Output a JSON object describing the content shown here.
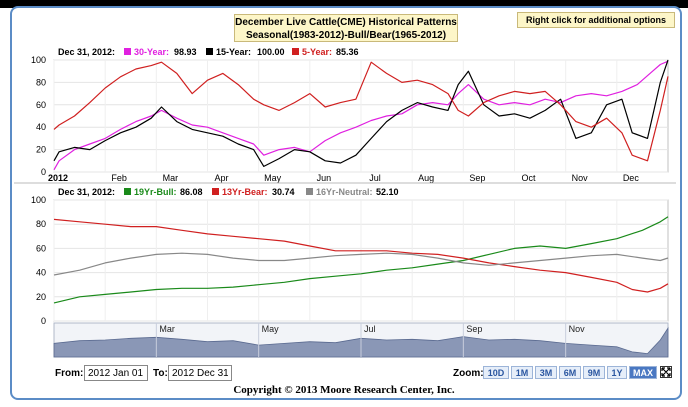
{
  "header": {
    "title_line1": "December Live Cattle(CME) Historical Patterns",
    "title_line2": "Seasonal(1983-2012)-Bull/Bear(1965-2012)",
    "right_click": "Right click for additional options"
  },
  "upper_legend": {
    "date": "Dec 31, 2012:",
    "items": [
      {
        "label": "30-Year:",
        "value": "98.93",
        "color": "#e020e0"
      },
      {
        "label": "15-Year:",
        "value": "100.00",
        "color": "#000000"
      },
      {
        "label": "5-Year:",
        "value": "85.36",
        "color": "#d02020"
      }
    ]
  },
  "lower_legend": {
    "date": "Dec 31, 2012:",
    "items": [
      {
        "label": "19Yr-Bull:",
        "value": "86.08",
        "color": "#1a8a1a"
      },
      {
        "label": "13Yr-Bear:",
        "value": "30.74",
        "color": "#d02020"
      },
      {
        "label": "16Yr-Neutral:",
        "value": "52.10",
        "color": "#888888"
      }
    ]
  },
  "controls": {
    "from_label": "From:",
    "from_value": "2012 Jan 01",
    "to_label": "To:",
    "to_value": "2012 Dec 31",
    "zoom_label": "Zoom:",
    "zoom_buttons": [
      "10D",
      "1M",
      "3M",
      "6M",
      "9M",
      "1Y",
      "MAX"
    ],
    "zoom_active": "MAX",
    "fullscreen_icon": "expand-icon"
  },
  "copyright": "Copyright © 2013 Moore Research Center, Inc.",
  "chart_data": [
    {
      "type": "line",
      "x_ticks": [
        "2012",
        "Feb",
        "Mar",
        "Apr",
        "May",
        "Jun",
        "Jul",
        "Aug",
        "Sep",
        "Oct",
        "Nov",
        "Dec"
      ],
      "x_tick_positions": [
        0,
        1,
        2,
        3,
        4,
        5,
        6,
        7,
        8,
        9,
        10,
        11
      ],
      "ylim": [
        0,
        100
      ],
      "y_ticks": [
        0,
        20,
        40,
        60,
        80,
        100
      ],
      "x_range": [
        0,
        12
      ],
      "series": [
        {
          "name": "30-Year",
          "color": "#e020e0",
          "x": [
            0,
            0.1,
            0.4,
            0.7,
            1.0,
            1.3,
            1.6,
            1.9,
            2.1,
            2.4,
            2.7,
            3.0,
            3.3,
            3.6,
            3.9,
            4.1,
            4.4,
            4.7,
            5.0,
            5.3,
            5.6,
            5.9,
            6.2,
            6.5,
            6.8,
            7.1,
            7.4,
            7.7,
            7.9,
            8.1,
            8.4,
            8.7,
            9.0,
            9.3,
            9.6,
            9.9,
            10.2,
            10.5,
            10.8,
            11.1,
            11.4,
            11.7,
            11.85,
            12.0
          ],
          "y": [
            2,
            10,
            20,
            25,
            30,
            38,
            45,
            50,
            55,
            48,
            42,
            40,
            35,
            30,
            25,
            15,
            20,
            22,
            18,
            28,
            35,
            40,
            46,
            50,
            52,
            60,
            62,
            60,
            70,
            78,
            65,
            60,
            62,
            60,
            65,
            62,
            68,
            70,
            68,
            72,
            78,
            90,
            96,
            98.93
          ]
        },
        {
          "name": "15-Year",
          "color": "#000000",
          "x": [
            0,
            0.1,
            0.4,
            0.7,
            1.0,
            1.3,
            1.6,
            1.9,
            2.1,
            2.4,
            2.7,
            3.0,
            3.3,
            3.6,
            3.9,
            4.1,
            4.4,
            4.7,
            5.0,
            5.3,
            5.6,
            5.9,
            6.2,
            6.5,
            6.8,
            7.1,
            7.4,
            7.7,
            7.9,
            8.1,
            8.4,
            8.7,
            9.0,
            9.3,
            9.6,
            9.9,
            10.2,
            10.5,
            10.8,
            11.1,
            11.3,
            11.6,
            11.85,
            12.0
          ],
          "y": [
            10,
            18,
            22,
            20,
            28,
            35,
            40,
            48,
            58,
            45,
            38,
            35,
            32,
            25,
            20,
            5,
            12,
            20,
            18,
            10,
            8,
            15,
            30,
            45,
            55,
            62,
            58,
            55,
            78,
            90,
            60,
            50,
            52,
            48,
            55,
            65,
            30,
            35,
            60,
            65,
            35,
            30,
            80,
            100
          ]
        },
        {
          "name": "5-Year",
          "color": "#d02020",
          "x": [
            0,
            0.1,
            0.4,
            0.7,
            1.0,
            1.3,
            1.6,
            1.9,
            2.1,
            2.4,
            2.7,
            3.0,
            3.3,
            3.6,
            3.9,
            4.1,
            4.4,
            4.7,
            5.0,
            5.3,
            5.6,
            5.9,
            6.2,
            6.5,
            6.8,
            7.1,
            7.4,
            7.7,
            7.9,
            8.1,
            8.4,
            8.7,
            9.0,
            9.3,
            9.6,
            9.9,
            10.2,
            10.5,
            10.8,
            11.1,
            11.3,
            11.6,
            11.85,
            12.0
          ],
          "y": [
            38,
            42,
            50,
            62,
            75,
            85,
            92,
            95,
            98,
            88,
            70,
            82,
            88,
            78,
            65,
            60,
            55,
            62,
            70,
            58,
            62,
            65,
            98,
            88,
            80,
            82,
            78,
            70,
            55,
            50,
            62,
            68,
            72,
            70,
            72,
            60,
            45,
            40,
            48,
            35,
            15,
            10,
            55,
            85.36
          ]
        }
      ]
    },
    {
      "type": "line",
      "ylim": [
        0,
        100
      ],
      "y_ticks": [
        0,
        20,
        40,
        60,
        80,
        100
      ],
      "x_range": [
        0,
        12
      ],
      "series": [
        {
          "name": "19Yr-Bull",
          "color": "#1a8a1a",
          "x": [
            0,
            0.5,
            1,
            1.5,
            2,
            2.5,
            3,
            3.5,
            4,
            4.5,
            5,
            5.5,
            6,
            6.5,
            7,
            7.5,
            8,
            8.5,
            9,
            9.5,
            10,
            10.5,
            11,
            11.5,
            11.85,
            12.0
          ],
          "y": [
            15,
            20,
            22,
            24,
            26,
            27,
            27,
            28,
            30,
            32,
            35,
            37,
            39,
            42,
            44,
            47,
            50,
            55,
            60,
            62,
            60,
            64,
            68,
            75,
            82,
            86.08
          ]
        },
        {
          "name": "13Yr-Bear",
          "color": "#d02020",
          "x": [
            0,
            0.5,
            1,
            1.5,
            2,
            2.5,
            3,
            3.5,
            4,
            4.5,
            5,
            5.5,
            6,
            6.5,
            7,
            7.5,
            8,
            8.5,
            9,
            9.5,
            10,
            10.5,
            11,
            11.3,
            11.6,
            11.85,
            12.0
          ],
          "y": [
            84,
            82,
            80,
            78,
            78,
            75,
            72,
            70,
            68,
            66,
            62,
            58,
            58,
            58,
            56,
            55,
            52,
            48,
            45,
            42,
            40,
            36,
            32,
            26,
            24,
            27,
            30.74
          ]
        },
        {
          "name": "16Yr-Neutral",
          "color": "#888888",
          "x": [
            0,
            0.5,
            1,
            1.5,
            2,
            2.5,
            3,
            3.5,
            4,
            4.5,
            5,
            5.5,
            6,
            6.5,
            7,
            7.5,
            8,
            8.5,
            9,
            9.5,
            10,
            10.5,
            11,
            11.5,
            11.85,
            12.0
          ],
          "y": [
            38,
            42,
            48,
            52,
            55,
            56,
            55,
            52,
            50,
            50,
            52,
            54,
            55,
            56,
            55,
            52,
            48,
            46,
            48,
            50,
            52,
            54,
            55,
            52,
            50,
            52.1
          ]
        }
      ]
    }
  ],
  "navigator": {
    "labels": [
      "Mar",
      "May",
      "Jul",
      "Sep",
      "Nov"
    ],
    "label_positions": [
      2,
      4,
      6,
      8,
      10
    ],
    "x": [
      0,
      0.5,
      1,
      1.5,
      2,
      2.5,
      3,
      3.5,
      4,
      4.5,
      5,
      5.5,
      6,
      6.5,
      7,
      7.5,
      8,
      8.5,
      9,
      9.5,
      10,
      10.5,
      11,
      11.3,
      11.6,
      11.85,
      12.0
    ],
    "y": [
      40,
      48,
      50,
      55,
      58,
      52,
      45,
      48,
      35,
      40,
      45,
      42,
      55,
      50,
      52,
      48,
      60,
      50,
      52,
      48,
      40,
      35,
      30,
      15,
      10,
      50,
      85
    ]
  }
}
